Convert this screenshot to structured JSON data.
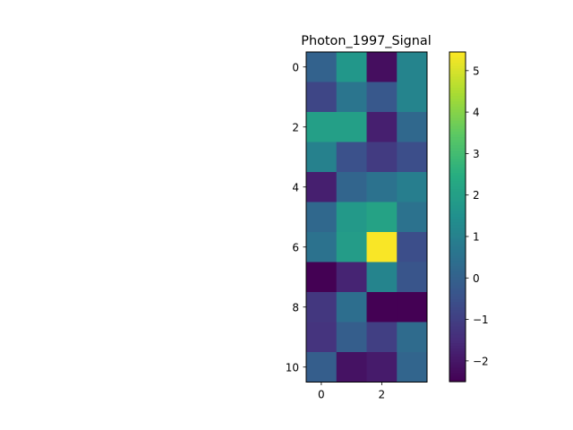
{
  "chart_data": {
    "type": "heatmap",
    "title": "Photon_1997_Signal",
    "xlabel": "",
    "ylabel": "",
    "colormap": "viridis",
    "rows": [
      0,
      1,
      2,
      3,
      4,
      5,
      6,
      7,
      8,
      9,
      10
    ],
    "cols": [
      0,
      1,
      2,
      3
    ],
    "values": [
      [
        0.0,
        1.7,
        -2.2,
        1.1
      ],
      [
        -0.8,
        0.6,
        -0.3,
        1.1
      ],
      [
        2.0,
        2.0,
        -1.8,
        0.2
      ],
      [
        1.0,
        -0.5,
        -1.1,
        -0.6
      ],
      [
        -1.8,
        0.1,
        0.5,
        0.9
      ],
      [
        0.2,
        1.8,
        2.1,
        0.5
      ],
      [
        0.5,
        1.9,
        5.4,
        -0.6
      ],
      [
        -2.5,
        -1.7,
        1.1,
        -0.4
      ],
      [
        -1.2,
        0.4,
        -2.5,
        -2.5
      ],
      [
        -1.3,
        -0.1,
        -1.0,
        0.3
      ],
      [
        -0.1,
        -2.1,
        -1.9,
        0.1
      ]
    ],
    "color_range": [
      -2.5,
      5.45
    ],
    "x_ticks": [
      "0",
      "2"
    ],
    "y_ticks": [
      "0",
      "2",
      "4",
      "6",
      "8",
      "10"
    ],
    "colorbar_ticks": [
      "−2",
      "−1",
      "0",
      "1",
      "2",
      "3",
      "4",
      "5"
    ],
    "grid": false
  }
}
